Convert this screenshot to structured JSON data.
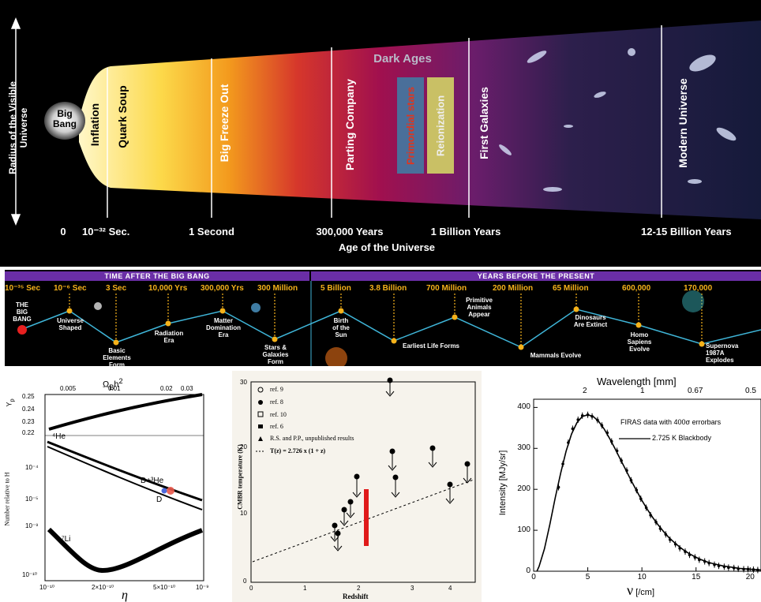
{
  "timeline": {
    "y_axis_label": "Radius of the Visible Universe",
    "big_bang": "Big Bang",
    "eras": [
      "Inflation",
      "Quark Soup",
      "Big Freeze Out",
      "Parting Company",
      "Primordial stars",
      "Reionization",
      "First Galaxies",
      "Modern Universe"
    ],
    "dark_ages": "Dark Ages",
    "ticks": [
      "0",
      "10⁻³² Sec.",
      "1 Second",
      "300,000 Years",
      "1 Billion Years",
      "12-15 Billion Years"
    ],
    "x_axis_label": "Age of the Universe"
  },
  "strip": {
    "left_header": "TIME AFTER THE BIG BANG",
    "right_header": "YEARS BEFORE THE PRESENT",
    "times": [
      "10⁻³⁵ Sec",
      "10⁻⁶ Sec",
      "3 Sec",
      "10,000 Yrs",
      "300,000 Yrs",
      "300 Million",
      "5 Billion",
      "3.8 Billion",
      "700 Million",
      "200 Million",
      "65 Million",
      "600,000",
      "170,000"
    ],
    "events": [
      "THE\nBIG\nBANG",
      "Universe\nShaped",
      "Basic\nElements\nForm",
      "Radiation\nEra",
      "Matter\nDomination\nEra",
      "Stars &\nGalaxies\nForm",
      "Birth\nof the\nSun",
      "Earliest Life Forms",
      "Primitive\nAnimals\nAppear",
      "Mammals Evolve",
      "Dinosaurs\nAre Extinct",
      "Homo\nSapiens\nEvolve",
      "Supernova\n1987A\nExplodes"
    ]
  },
  "bbn": {
    "top_axis": "Ω<sub>B</sub>h²",
    "top_ticks": [
      "0.005",
      "0.01",
      "0.02",
      "0.03"
    ],
    "ylabel_top": "Y<sub>p</sub>",
    "ylabel_bottom": "Number relative to H",
    "y_ticks_top": [
      "0.25",
      "0.24",
      "0.23",
      "0.22"
    ],
    "y_ticks_bottom": [
      "10⁻⁴",
      "10⁻⁵",
      "10⁻⁹",
      "10⁻¹⁰"
    ],
    "curves": [
      "⁴He",
      "D+³He",
      "D",
      "⁷Li"
    ],
    "x_ticks": [
      "10⁻¹⁰",
      "2×10⁻¹⁰",
      "5×10⁻¹⁰",
      "10⁻⁹"
    ],
    "xlabel": "η"
  },
  "cmbr": {
    "legend": [
      "ref. 9",
      "ref. 8",
      "ref. 10",
      "ref. 6",
      "R.S. and P.P., unpublished results",
      "T(z) = 2.726 x (1 + z)"
    ],
    "ylabel": "CMBR temperature (K)",
    "xlabel": "Redshift",
    "y_ticks": [
      "30",
      "20",
      "10",
      "0"
    ],
    "x_ticks": [
      "0",
      "1",
      "2",
      "3",
      "4"
    ]
  },
  "chart_data": [
    {
      "type": "line",
      "title": "",
      "xlabel": "ν [/cm]",
      "ylabel": "Intensity [MJy/sr]",
      "top_axis_label": "Wavelength [mm]",
      "top_ticks": [
        "2",
        "1",
        "0.67",
        "0.5"
      ],
      "xlim": [
        0,
        21
      ],
      "ylim": [
        0,
        420
      ],
      "x_ticks": [
        "0",
        "5",
        "10",
        "15",
        "20"
      ],
      "y_ticks": [
        "0",
        "100",
        "200",
        "300",
        "400"
      ],
      "legend": [
        "FIRAS data with 400σ errorbars",
        "2.725 K Blackbody"
      ],
      "legend_position": "top-right",
      "series": [
        {
          "name": "2.725 K Blackbody",
          "x": [
            0.5,
            1,
            1.5,
            2,
            2.5,
            3,
            3.5,
            4,
            4.5,
            5,
            5.5,
            6,
            6.5,
            7,
            7.5,
            8,
            8.5,
            9,
            9.5,
            10,
            10.5,
            11,
            11.5,
            12,
            12.5,
            13,
            13.5,
            14,
            14.5,
            15,
            15.5,
            16,
            16.5,
            17,
            17.5,
            18,
            18.5,
            19,
            19.5,
            20,
            20.5,
            21
          ],
          "values": [
            12,
            55,
            115,
            180,
            240,
            293,
            335,
            363,
            378,
            382,
            378,
            366,
            348,
            325,
            300,
            274,
            248,
            222,
            197,
            173,
            151,
            131,
            113,
            97,
            82,
            70,
            59,
            49,
            41,
            34,
            28,
            23,
            19,
            16,
            13,
            11,
            9,
            7,
            6,
            5,
            4,
            3
          ]
        },
        {
          "name": "FIRAS data with 400σ errorbars",
          "x": [
            2.3,
            2.7,
            3.2,
            3.6,
            4.1,
            4.5,
            5,
            5.4,
            5.9,
            6.3,
            6.8,
            7.2,
            7.7,
            8.1,
            8.6,
            9,
            9.5,
            9.9,
            10.4,
            10.8,
            11.3,
            11.7,
            12.2,
            12.6,
            13.1,
            13.5,
            14,
            14.4,
            14.9,
            15.3,
            15.8,
            16.2,
            16.7,
            17.1,
            17.6,
            18,
            18.5,
            18.9,
            19.4,
            19.8,
            20.3,
            20.7
          ],
          "values": [
            205,
            262,
            314,
            348,
            370,
            380,
            382,
            378,
            369,
            356,
            338,
            317,
            294,
            270,
            246,
            222,
            198,
            177,
            155,
            137,
            120,
            104,
            90,
            77,
            66,
            56,
            48,
            40,
            34,
            28,
            24,
            20,
            16,
            13,
            11,
            9,
            8,
            6,
            5,
            5,
            4,
            3
          ]
        }
      ]
    }
  ]
}
